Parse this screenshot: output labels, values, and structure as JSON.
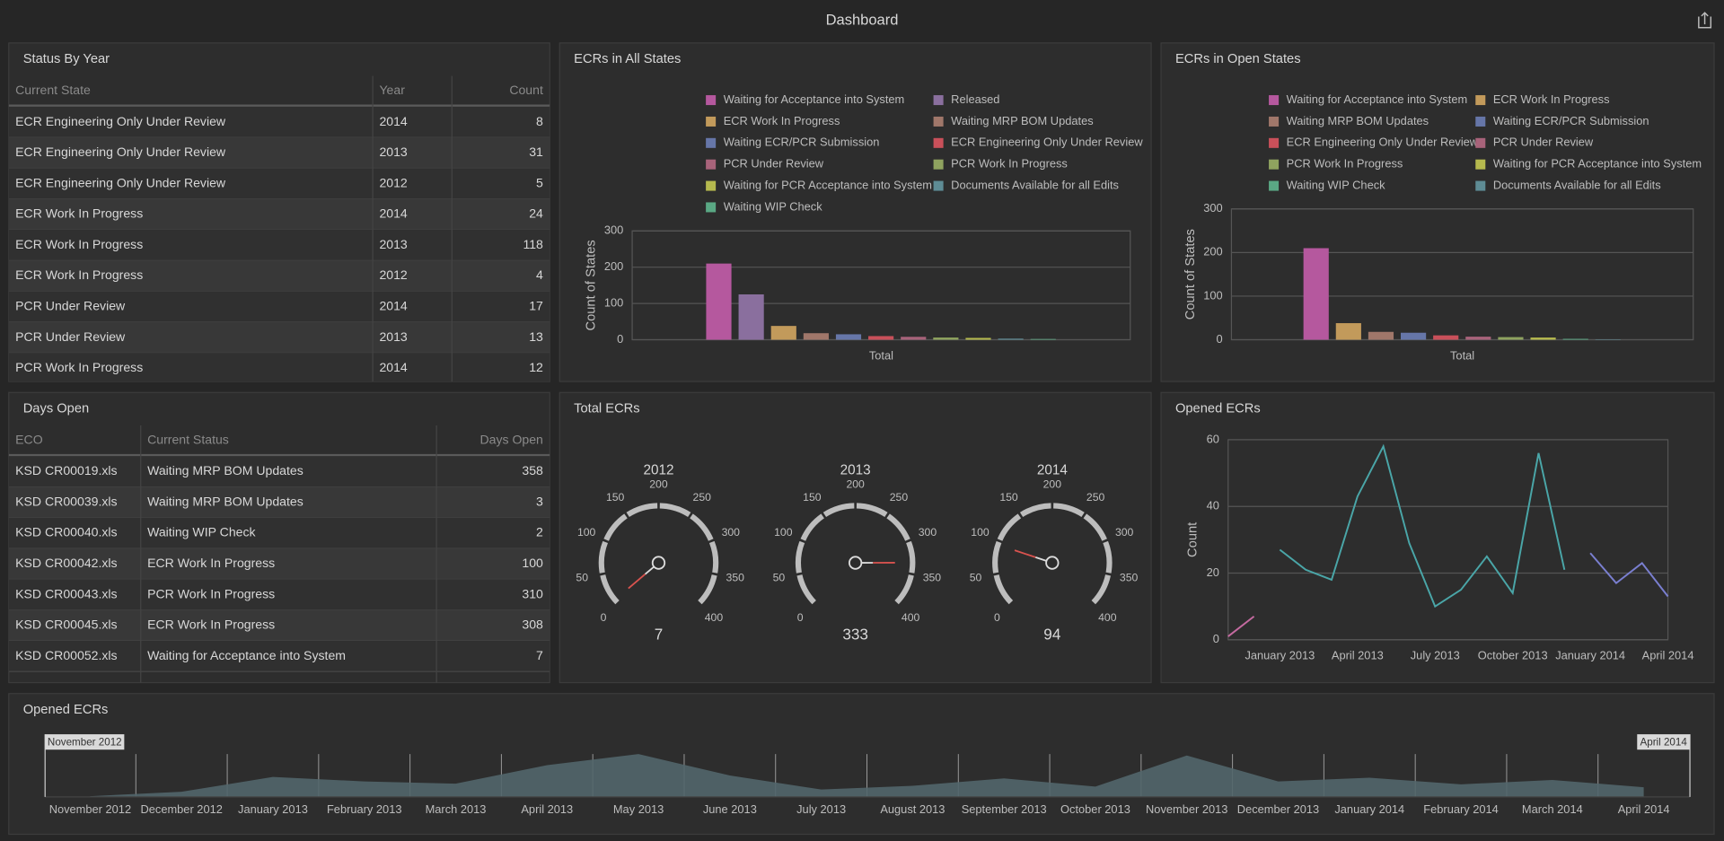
{
  "header": {
    "title": "Dashboard"
  },
  "status_table": {
    "title": "Status By Year",
    "columns": [
      "Current State",
      "Year",
      "Count"
    ],
    "rows": [
      [
        "ECR Engineering Only Under Review",
        2014,
        8
      ],
      [
        "ECR Engineering Only Under Review",
        2013,
        31
      ],
      [
        "ECR Engineering Only Under Review",
        2012,
        5
      ],
      [
        "ECR Work In Progress",
        2014,
        24
      ],
      [
        "ECR Work In Progress",
        2013,
        118
      ],
      [
        "ECR Work In Progress",
        2012,
        4
      ],
      [
        "PCR Under Review",
        2014,
        17
      ],
      [
        "PCR Under Review",
        2013,
        13
      ],
      [
        "PCR Work In Progress",
        2014,
        12
      ]
    ]
  },
  "days_table": {
    "title": "Days Open",
    "columns": [
      "ECO",
      "Current Status",
      "Days Open"
    ],
    "rows": [
      [
        "KSD CR00019.xls",
        "Waiting MRP BOM Updates",
        358
      ],
      [
        "KSD CR00039.xls",
        "Waiting MRP BOM Updates",
        3
      ],
      [
        "KSD CR00040.xls",
        "Waiting WIP Check",
        2
      ],
      [
        "KSD CR00042.xls",
        "ECR Work In Progress",
        100
      ],
      [
        "KSD CR00043.xls",
        "PCR Work In Progress",
        310
      ],
      [
        "KSD CR00045.xls",
        "ECR Work In Progress",
        308
      ],
      [
        "KSD CR00052.xls",
        "Waiting for Acceptance into System",
        7
      ]
    ]
  },
  "chart_data": [
    {
      "type": "bar",
      "title": "ECRs in All States",
      "y_label": "Count of States",
      "categories": [
        "Total"
      ],
      "ylim": [
        0,
        300
      ],
      "yticks": [
        0,
        100,
        200,
        300
      ],
      "grid": true,
      "series": [
        {
          "name": "Waiting for Acceptance into System",
          "color": "#b5589e",
          "values": [
            210
          ]
        },
        {
          "name": "Released",
          "color": "#8a6f9e",
          "values": [
            125
          ]
        },
        {
          "name": "ECR Work In Progress",
          "color": "#c29a5b",
          "values": [
            38
          ]
        },
        {
          "name": "Waiting MRP BOM Updates",
          "color": "#a0776a",
          "values": [
            18
          ]
        },
        {
          "name": "Waiting ECR/PCR Submission",
          "color": "#6676a8",
          "values": [
            15
          ]
        },
        {
          "name": "ECR Engineering Only Under Review",
          "color": "#c9505a",
          "values": [
            10
          ]
        },
        {
          "name": "PCR Under Review",
          "color": "#a8637a",
          "values": [
            8
          ]
        },
        {
          "name": "PCR Work In Progress",
          "color": "#8fa35f",
          "values": [
            6
          ]
        },
        {
          "name": "Waiting for PCR Acceptance into System",
          "color": "#b5b94e",
          "values": [
            5
          ]
        },
        {
          "name": "Documents Available for all Edits",
          "color": "#5e8c95",
          "values": [
            3
          ]
        },
        {
          "name": "Waiting WIP Check",
          "color": "#5aa884",
          "values": [
            2
          ]
        }
      ]
    },
    {
      "type": "bar",
      "title": "ECRs in Open States",
      "y_label": "Count of States",
      "categories": [
        "Total"
      ],
      "ylim": [
        0,
        300
      ],
      "yticks": [
        0,
        100,
        200,
        300
      ],
      "grid": true,
      "series": [
        {
          "name": "Waiting for Acceptance into System",
          "color": "#b5589e",
          "values": [
            210
          ]
        },
        {
          "name": "ECR Work In Progress",
          "color": "#c29a5b",
          "values": [
            38
          ]
        },
        {
          "name": "Waiting MRP BOM Updates",
          "color": "#a0776a",
          "values": [
            18
          ]
        },
        {
          "name": "Waiting ECR/PCR Submission",
          "color": "#6676a8",
          "values": [
            16
          ]
        },
        {
          "name": "ECR Engineering Only Under Review",
          "color": "#c9505a",
          "values": [
            10
          ]
        },
        {
          "name": "PCR Under Review",
          "color": "#a8637a",
          "values": [
            7
          ]
        },
        {
          "name": "PCR Work In Progress",
          "color": "#8fa35f",
          "values": [
            6
          ]
        },
        {
          "name": "Waiting for PCR Acceptance into System",
          "color": "#b5b94e",
          "values": [
            5
          ]
        },
        {
          "name": "Waiting WIP Check",
          "color": "#5aa884",
          "values": [
            2
          ]
        },
        {
          "name": "Documents Available for all Edits",
          "color": "#5e8c95",
          "values": [
            1
          ]
        }
      ]
    },
    {
      "type": "gauge",
      "title": "Total ECRs",
      "ylim": [
        0,
        400
      ],
      "yticks": [
        0,
        50,
        100,
        150,
        200,
        250,
        300,
        350,
        400
      ],
      "gauges": [
        {
          "label": "2012",
          "value": 7
        },
        {
          "label": "2013",
          "value": 333
        },
        {
          "label": "2014",
          "value": 94
        }
      ]
    },
    {
      "type": "line",
      "title": "Opened ECRs",
      "y_label": "Count",
      "categories": [
        null,
        null,
        "January 2013",
        null,
        null,
        "April 2013",
        null,
        null,
        "July 2013",
        null,
        null,
        "October 2013",
        null,
        null,
        "January 2014",
        null,
        null,
        "April 2014"
      ],
      "ylim": [
        0,
        60
      ],
      "yticks": [
        0,
        20,
        40,
        60
      ],
      "grid": true,
      "series": [
        {
          "color": "#c46aa0",
          "values": [
            1,
            7,
            null,
            null,
            null,
            null,
            null,
            null,
            null,
            null,
            null,
            null,
            null,
            null,
            null,
            null,
            null,
            null
          ]
        },
        {
          "color": "#4aa6a8",
          "values": [
            null,
            null,
            27,
            21,
            18,
            43,
            58,
            29,
            10,
            15,
            25,
            14,
            56,
            21,
            null,
            null,
            null,
            null
          ]
        },
        {
          "color": "#7a7fd0",
          "values": [
            null,
            null,
            null,
            null,
            null,
            null,
            null,
            null,
            null,
            null,
            null,
            null,
            null,
            null,
            26,
            17,
            23,
            13
          ]
        }
      ]
    },
    {
      "type": "area",
      "title": "Opened ECRs",
      "color": "#52666b",
      "categories": [
        "November 2012",
        "December 2012",
        "January 2013",
        "February 2013",
        "March 2013",
        "April 2013",
        "May 2013",
        "June 2013",
        "July 2013",
        "August 2013",
        "September 2013",
        "October 2013",
        "November 2013",
        "December 2013",
        "January 2014",
        "February 2014",
        "March 2014",
        "April 2014"
      ],
      "values": [
        1,
        7,
        27,
        21,
        18,
        43,
        58,
        29,
        10,
        15,
        25,
        14,
        56,
        21,
        26,
        17,
        23,
        13
      ]
    }
  ]
}
